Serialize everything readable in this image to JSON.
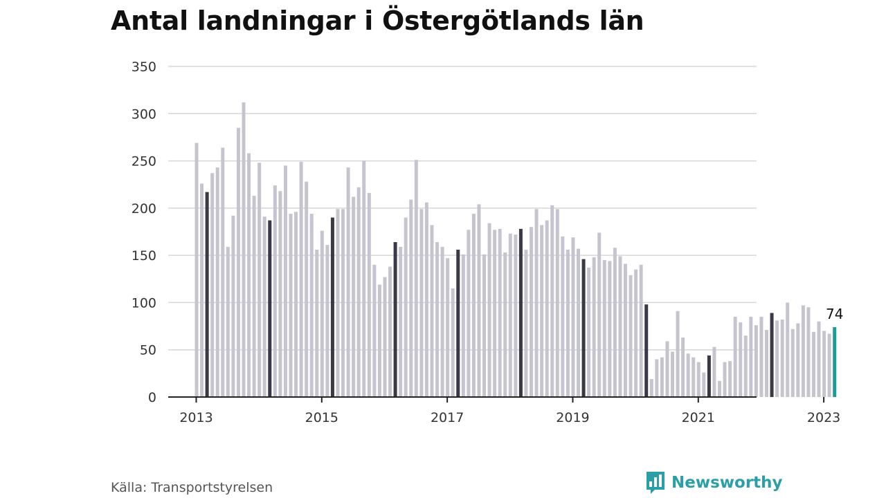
{
  "title": "Antal landningar i Östergötlands län",
  "source": "Källa: Transportstyrelsen",
  "brand": {
    "name": "Newsworthy",
    "icon": "bar-chart-logo-icon"
  },
  "colors": {
    "bar": "#c6c5cf",
    "highlight": "#3a3947",
    "latest": "#1c9c96",
    "grid": "#d6d6d6",
    "axis": "#222222",
    "brand": "#2a9fa6"
  },
  "chart_data": {
    "type": "bar",
    "title": "Antal landningar i Östergötlands län",
    "xlabel": "",
    "ylabel": "",
    "ylim": [
      0,
      350
    ],
    "yticks": [
      0,
      50,
      100,
      150,
      200,
      250,
      300,
      350
    ],
    "grid": true,
    "start": "2013-01",
    "xticks": [
      {
        "label": "2013",
        "index": 0
      },
      {
        "label": "2015",
        "index": 24
      },
      {
        "label": "2017",
        "index": 48
      },
      {
        "label": "2019",
        "index": 72
      },
      {
        "label": "2021",
        "index": 96
      },
      {
        "label": "2023",
        "index": 120
      }
    ],
    "categories": [
      "2013-01",
      "2013-02",
      "2013-03",
      "2013-04",
      "2013-05",
      "2013-06",
      "2013-07",
      "2013-08",
      "2013-09",
      "2013-10",
      "2013-11",
      "2013-12",
      "2014-01",
      "2014-02",
      "2014-03",
      "2014-04",
      "2014-05",
      "2014-06",
      "2014-07",
      "2014-08",
      "2014-09",
      "2014-10",
      "2014-11",
      "2014-12",
      "2015-01",
      "2015-02",
      "2015-03",
      "2015-04",
      "2015-05",
      "2015-06",
      "2015-07",
      "2015-08",
      "2015-09",
      "2015-10",
      "2015-11",
      "2015-12",
      "2016-01",
      "2016-02",
      "2016-03",
      "2016-04",
      "2016-05",
      "2016-06",
      "2016-07",
      "2016-08",
      "2016-09",
      "2016-10",
      "2016-11",
      "2016-12",
      "2017-01",
      "2017-02",
      "2017-03",
      "2017-04",
      "2017-05",
      "2017-06",
      "2017-07",
      "2017-08",
      "2017-09",
      "2017-10",
      "2017-11",
      "2017-12",
      "2018-01",
      "2018-02",
      "2018-03",
      "2018-04",
      "2018-05",
      "2018-06",
      "2018-07",
      "2018-08",
      "2018-09",
      "2018-10",
      "2018-11",
      "2018-12",
      "2019-01",
      "2019-02",
      "2019-03",
      "2019-04",
      "2019-05",
      "2019-06",
      "2019-07",
      "2019-08",
      "2019-09",
      "2019-10",
      "2019-11",
      "2019-12",
      "2020-01",
      "2020-02",
      "2020-03",
      "2020-04",
      "2020-05",
      "2020-06",
      "2020-07",
      "2020-08",
      "2020-09",
      "2020-10",
      "2020-11",
      "2020-12",
      "2021-01",
      "2021-02",
      "2021-03",
      "2021-04",
      "2021-05",
      "2021-06",
      "2021-07",
      "2021-08",
      "2021-09",
      "2021-10",
      "2021-11",
      "2021-12",
      "2022-01",
      "2022-02",
      "2022-03",
      "2022-04",
      "2022-05",
      "2022-06",
      "2022-07",
      "2022-08",
      "2022-09",
      "2022-10",
      "2022-11",
      "2022-12",
      "2023-01",
      "2023-02",
      "2023-03"
    ],
    "values": [
      269,
      226,
      217,
      237,
      243,
      264,
      159,
      192,
      285,
      312,
      258,
      213,
      248,
      191,
      187,
      224,
      218,
      245,
      194,
      196,
      249,
      228,
      194,
      156,
      176,
      161,
      190,
      199,
      199,
      243,
      212,
      222,
      250,
      216,
      140,
      119,
      127,
      138,
      164,
      159,
      190,
      209,
      251,
      199,
      206,
      182,
      164,
      159,
      147,
      115,
      156,
      151,
      177,
      194,
      204,
      151,
      184,
      177,
      178,
      153,
      173,
      172,
      178,
      156,
      180,
      199,
      182,
      187,
      203,
      199,
      170,
      156,
      169,
      157,
      146,
      137,
      148,
      174,
      145,
      144,
      158,
      149,
      141,
      129,
      135,
      140,
      98,
      19,
      40,
      42,
      59,
      48,
      91,
      63,
      46,
      42,
      37,
      26,
      44,
      53,
      17,
      37,
      38,
      85,
      79,
      65,
      85,
      76,
      85,
      71,
      89,
      81,
      82,
      100,
      72,
      78,
      97,
      95,
      69,
      80,
      70,
      67,
      74
    ],
    "highlighted_months": "March",
    "annotations": [
      {
        "label": "74",
        "category": "2023-03"
      }
    ]
  }
}
